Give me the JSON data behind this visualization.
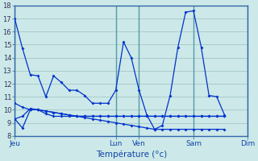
{
  "background_color": "#cce8e8",
  "grid_color": "#aacccc",
  "line_color": "#0033cc",
  "xlabel": "Température (°c)",
  "ylim": [
    8,
    18
  ],
  "yticks": [
    8,
    9,
    10,
    11,
    12,
    13,
    14,
    15,
    16,
    17,
    18
  ],
  "day_labels": [
    "Jeu",
    "Lun",
    "Ven",
    "Sam",
    "Dim"
  ],
  "day_x": [
    0,
    13,
    16,
    23,
    30
  ],
  "series": [
    [
      17.0,
      14.7,
      12.7,
      12.6,
      11.0,
      12.6,
      12.1,
      11.5,
      11.5,
      11.1,
      10.5,
      10.5,
      10.5,
      11.5,
      15.2,
      14.0,
      11.5,
      9.6,
      8.5,
      8.8,
      11.1,
      14.8,
      17.5,
      17.6,
      14.8,
      11.1,
      11.0,
      9.6
    ],
    [
      10.5,
      10.2,
      10.0,
      10.0,
      9.7,
      9.5,
      9.5,
      9.5,
      9.5,
      9.5,
      9.5,
      9.5,
      9.5,
      9.5,
      9.5,
      9.5,
      9.5,
      9.5,
      9.5,
      9.5,
      9.5,
      9.5,
      9.5,
      9.5,
      9.5,
      9.5,
      9.5,
      9.5
    ],
    [
      9.3,
      9.5,
      10.1,
      10.0,
      9.9,
      9.8,
      9.7,
      9.6,
      9.5,
      9.4,
      9.3,
      9.2,
      9.1,
      9.0,
      8.9,
      8.8,
      8.7,
      8.6,
      8.5,
      8.5,
      8.5,
      8.5,
      8.5,
      8.5,
      8.5,
      8.5,
      8.5,
      8.5
    ],
    [
      9.3,
      8.6,
      10.0,
      10.0,
      9.9,
      9.8,
      9.7,
      9.6,
      9.5,
      9.5,
      9.5,
      9.5,
      9.5,
      9.5,
      9.5,
      9.5,
      9.5,
      9.5,
      9.5,
      9.5,
      9.5,
      9.5,
      9.5,
      9.5,
      9.5,
      9.5,
      9.5,
      9.5
    ]
  ]
}
